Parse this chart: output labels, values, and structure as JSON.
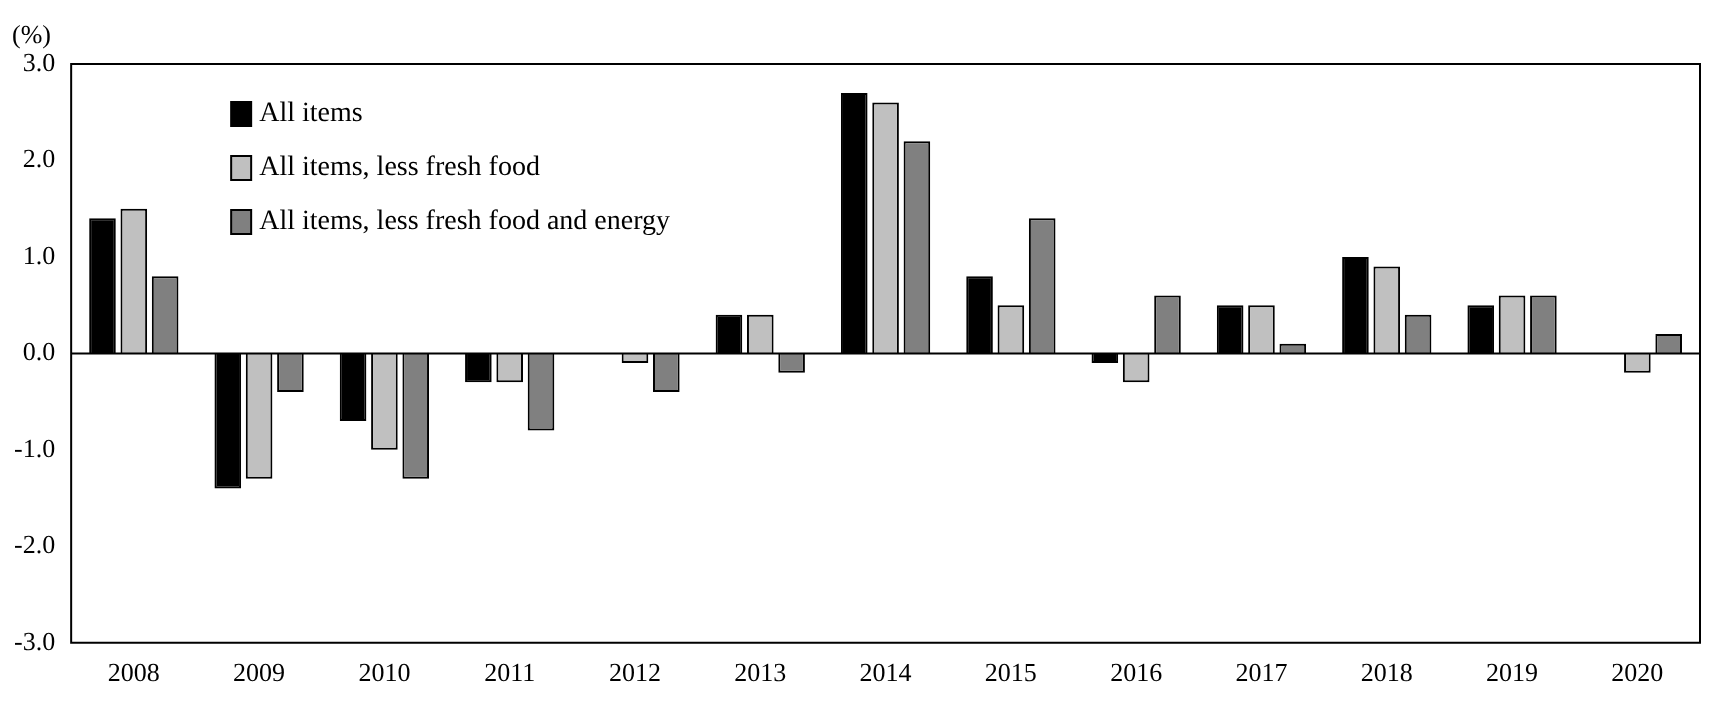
{
  "chart_data": {
    "type": "bar",
    "ylabel": "(%)",
    "categories": [
      "2008",
      "2009",
      "2010",
      "2011",
      "2012",
      "2013",
      "2014",
      "2015",
      "2016",
      "2017",
      "2018",
      "2019",
      "2020"
    ],
    "series": [
      {
        "name": "All items",
        "color": "#000000",
        "values": [
          1.4,
          -1.4,
          -0.7,
          -0.3,
          0.0,
          0.4,
          2.7,
          0.8,
          -0.1,
          0.5,
          1.0,
          0.5,
          0.0
        ]
      },
      {
        "name": "All items, less fresh food",
        "color": "#c0c0c0",
        "values": [
          1.5,
          -1.3,
          -1.0,
          -0.3,
          -0.1,
          0.4,
          2.6,
          0.5,
          -0.3,
          0.5,
          0.9,
          0.6,
          -0.2
        ]
      },
      {
        "name": "All items, less fresh food and energy",
        "color": "#808080",
        "values": [
          0.8,
          -0.4,
          -1.3,
          -0.8,
          -0.4,
          -0.2,
          2.2,
          1.4,
          0.6,
          0.1,
          0.4,
          0.6,
          0.2
        ]
      }
    ],
    "ylim": [
      -3,
      3
    ],
    "yticks": [
      {
        "value": -3,
        "label": "-3.0"
      },
      {
        "value": -2,
        "label": "-2.0"
      },
      {
        "value": -1,
        "label": "-1.0"
      },
      {
        "value": 0,
        "label": "0.0"
      },
      {
        "value": 1,
        "label": "1.0"
      },
      {
        "value": 2,
        "label": "2.0"
      },
      {
        "value": 3,
        "label": "3.0"
      }
    ],
    "ref_lines": [
      {
        "axis": "y",
        "value": 0
      }
    ],
    "grid": false,
    "legend": "top left"
  }
}
